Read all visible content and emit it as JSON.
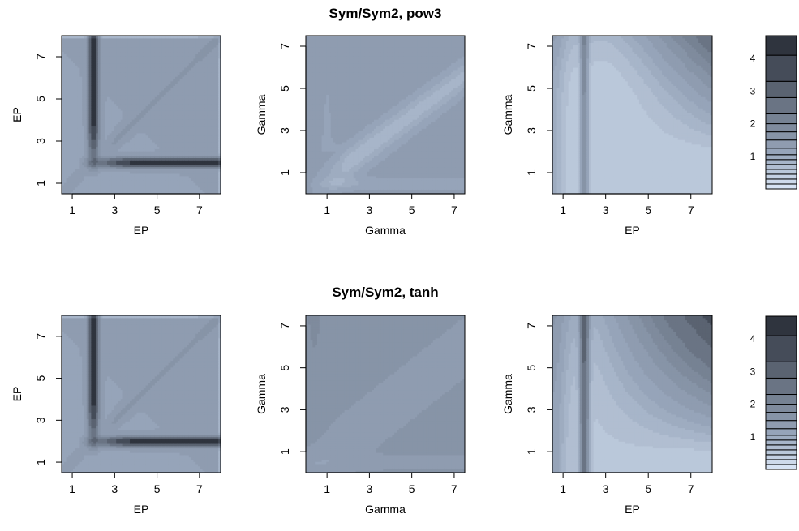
{
  "chart_data": [
    {
      "type": "heatmap",
      "row_title": "Sym/Sym2, pow3",
      "xlabel": "EP",
      "ylabel": "EP",
      "xlim": [
        0.5,
        8
      ],
      "ylim": [
        0.5,
        8
      ],
      "xticks": [
        1,
        3,
        5,
        7
      ],
      "yticks": [
        1,
        3,
        5,
        7
      ],
      "pattern": "cross",
      "ridge": 2
    },
    {
      "type": "heatmap",
      "xlabel": "Gamma",
      "ylabel": "Gamma",
      "xlim": [
        0,
        7.5
      ],
      "ylim": [
        0,
        7.5
      ],
      "xticks": [
        1,
        3,
        5,
        7
      ],
      "yticks": [
        1,
        3,
        5,
        7
      ],
      "pattern": "diagonal-light"
    },
    {
      "type": "heatmap",
      "xlabel": "EP",
      "ylabel": "Gamma",
      "xlim": [
        0.5,
        8
      ],
      "ylim": [
        0,
        7.5
      ],
      "xticks": [
        1,
        3,
        5,
        7
      ],
      "yticks": [
        1,
        3,
        5,
        7
      ],
      "pattern": "valley-light",
      "ridge": 2
    },
    {
      "type": "heatmap",
      "row_title": "Sym/Sym2, tanh",
      "xlabel": "EP",
      "ylabel": "EP",
      "xlim": [
        0.5,
        8
      ],
      "ylim": [
        0.5,
        8
      ],
      "xticks": [
        1,
        3,
        5,
        7
      ],
      "yticks": [
        1,
        3,
        5,
        7
      ],
      "pattern": "cross",
      "ridge": 2
    },
    {
      "type": "heatmap",
      "xlabel": "Gamma",
      "ylabel": "Gamma",
      "xlim": [
        0,
        7.5
      ],
      "ylim": [
        0,
        7.5
      ],
      "xticks": [
        1,
        3,
        5,
        7
      ],
      "yticks": [
        1,
        3,
        5,
        7
      ],
      "pattern": "diagonal-flat"
    },
    {
      "type": "heatmap",
      "xlabel": "EP",
      "ylabel": "Gamma",
      "xlim": [
        0.5,
        8
      ],
      "ylim": [
        0,
        7.5
      ],
      "xticks": [
        1,
        3,
        5,
        7
      ],
      "yticks": [
        1,
        3,
        5,
        7
      ],
      "pattern": "valley-dark",
      "ridge": 2
    }
  ],
  "legends": [
    {
      "ticks": [
        1,
        2,
        3,
        4
      ],
      "range": [
        0,
        4.7
      ]
    },
    {
      "ticks": [
        1,
        2,
        3,
        4
      ],
      "range": [
        0,
        4.7
      ]
    }
  ],
  "color_levels": [
    0,
    0.15,
    0.3,
    0.45,
    0.6,
    0.75,
    0.9,
    1.05,
    1.25,
    1.5,
    1.75,
    2.0,
    2.3,
    2.8,
    3.3,
    4.1,
    4.7
  ],
  "colors": {
    "low": "#dce8f8",
    "mid": "#9aa8bd",
    "high": "#252a33"
  }
}
